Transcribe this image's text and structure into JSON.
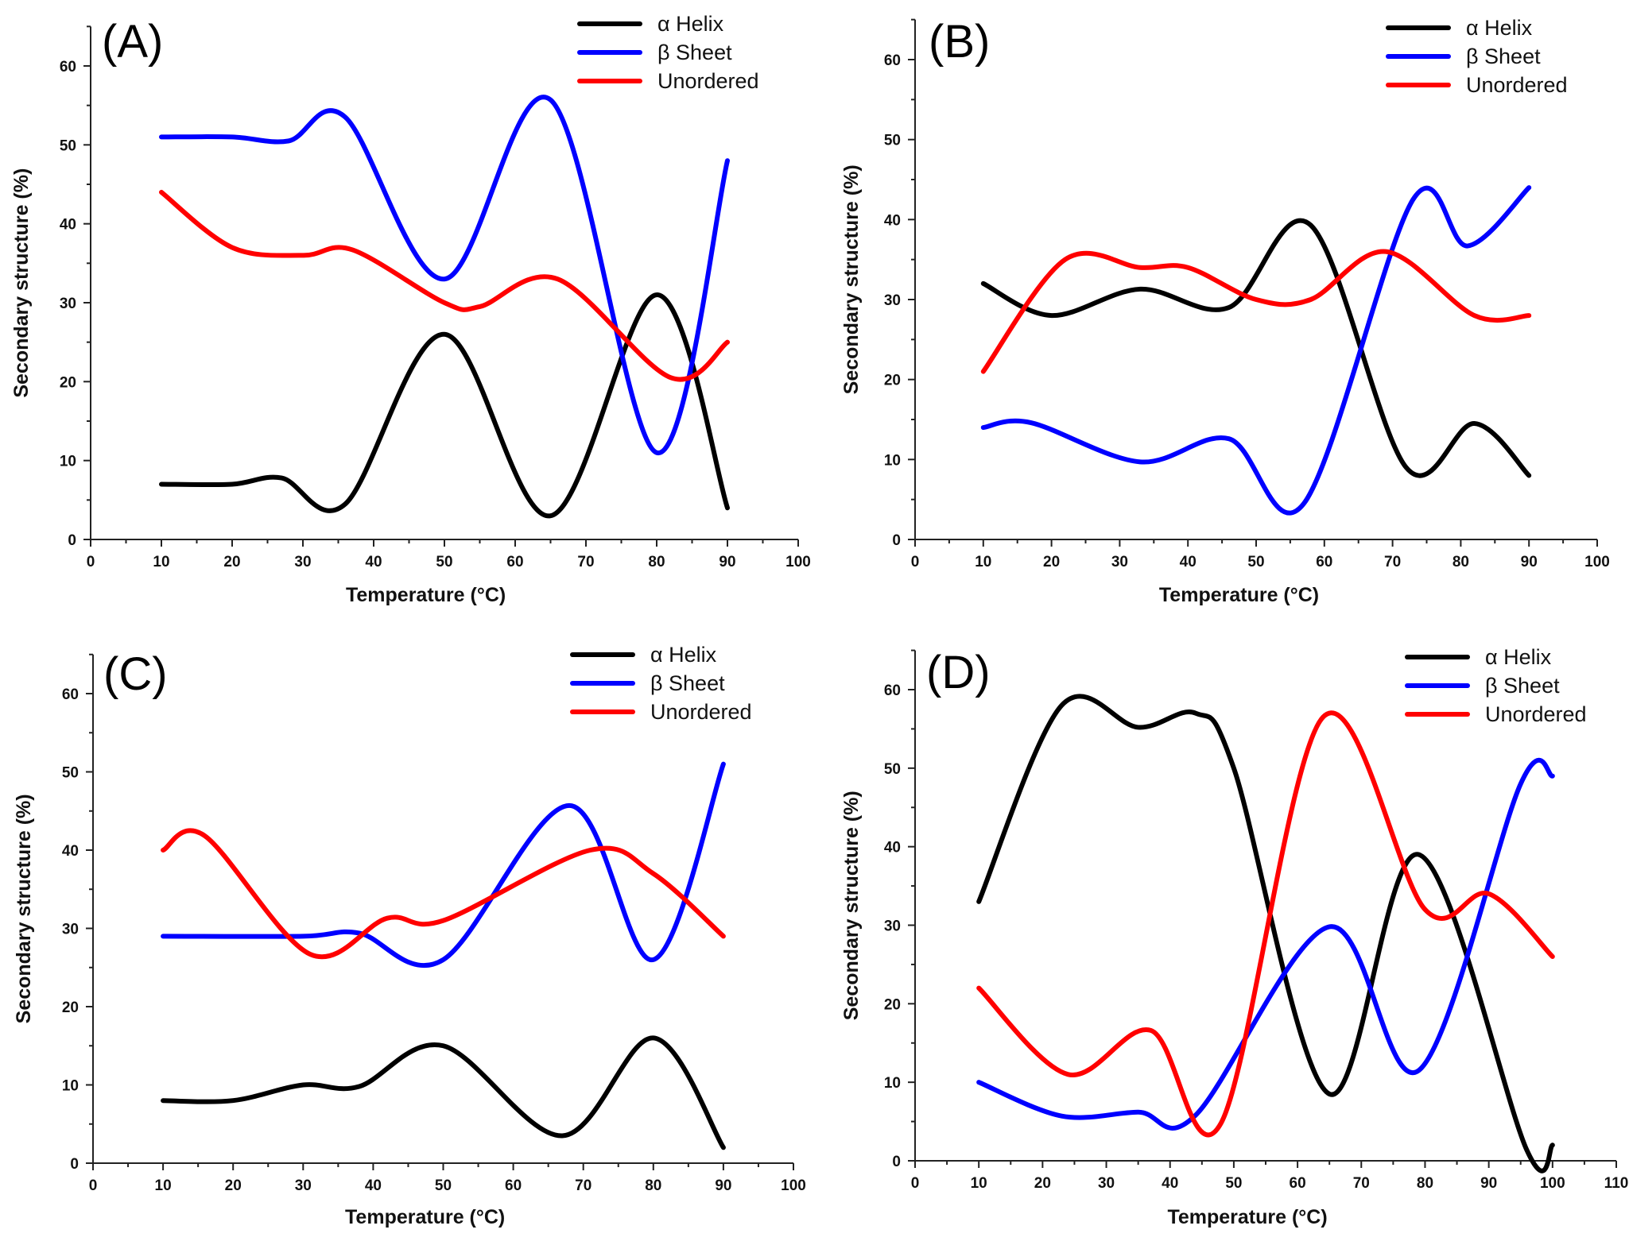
{
  "chart_data": [
    {
      "type": "line",
      "panel_label": "(A)",
      "xlabel": "Temperature (°C)",
      "ylabel": "Secondary structure (%)",
      "xlim": [
        0,
        100
      ],
      "ylim": [
        0,
        65
      ],
      "xticks": [
        0,
        10,
        20,
        30,
        40,
        50,
        60,
        70,
        80,
        90,
        100
      ],
      "yticks": [
        0,
        10,
        20,
        30,
        40,
        50,
        60
      ],
      "legend_position": "top-right",
      "series": [
        {
          "name": "α Helix",
          "color": "#000000",
          "points": [
            [
              10,
              7
            ],
            [
              20,
              7
            ],
            [
              27,
              7.8
            ],
            [
              36,
              4.5
            ],
            [
              50,
              26
            ],
            [
              65,
              3
            ],
            [
              80,
              31
            ],
            [
              90,
              4
            ]
          ]
        },
        {
          "name": "β Sheet",
          "color": "#0000ff",
          "points": [
            [
              10,
              51
            ],
            [
              20,
              51
            ],
            [
              28,
              50.5
            ],
            [
              36,
              53.5
            ],
            [
              50,
              33
            ],
            [
              65,
              55.7
            ],
            [
              80,
              11
            ],
            [
              90,
              48
            ]
          ]
        },
        {
          "name": "Unordered",
          "color": "#ff0000",
          "points": [
            [
              10,
              44
            ],
            [
              20,
              37
            ],
            [
              30,
              36
            ],
            [
              37,
              36.7
            ],
            [
              50,
              30
            ],
            [
              55,
              29.5
            ],
            [
              66,
              33
            ],
            [
              82,
              20.5
            ],
            [
              90,
              25
            ]
          ]
        }
      ]
    },
    {
      "type": "line",
      "panel_label": "(B)",
      "xlabel": "Temperature (°C)",
      "ylabel": "Secondary structure (%)",
      "xlim": [
        0,
        100
      ],
      "ylim": [
        0,
        65
      ],
      "xticks": [
        0,
        10,
        20,
        30,
        40,
        50,
        60,
        70,
        80,
        90,
        100
      ],
      "yticks": [
        0,
        10,
        20,
        30,
        40,
        50,
        60
      ],
      "legend_position": "top-right",
      "series": [
        {
          "name": "α Helix",
          "color": "#000000",
          "points": [
            [
              10,
              32
            ],
            [
              20,
              28
            ],
            [
              33,
              31.3
            ],
            [
              46,
              29
            ],
            [
              58,
              39.3
            ],
            [
              72,
              9
            ],
            [
              82,
              14.5
            ],
            [
              90,
              8
            ]
          ]
        },
        {
          "name": "β Sheet",
          "color": "#0000ff",
          "points": [
            [
              10,
              14
            ],
            [
              17,
              14.6
            ],
            [
              33,
              9.7
            ],
            [
              46,
              12.6
            ],
            [
              57,
              4.5
            ],
            [
              73,
              42.5
            ],
            [
              81,
              36.7
            ],
            [
              90,
              44
            ]
          ]
        },
        {
          "name": "Unordered",
          "color": "#ff0000",
          "points": [
            [
              10,
              21
            ],
            [
              22,
              35
            ],
            [
              33,
              34
            ],
            [
              40,
              34
            ],
            [
              50,
              30
            ],
            [
              58,
              30
            ],
            [
              69,
              36
            ],
            [
              82,
              28
            ],
            [
              90,
              28
            ]
          ]
        }
      ]
    },
    {
      "type": "line",
      "panel_label": "(C)",
      "xlabel": "Temperature (°C)",
      "ylabel": "Secondary structure (%)",
      "xlim": [
        0,
        100
      ],
      "ylim": [
        0,
        65
      ],
      "xticks": [
        0,
        10,
        20,
        30,
        40,
        50,
        60,
        70,
        80,
        90,
        100
      ],
      "yticks": [
        0,
        10,
        20,
        30,
        40,
        50,
        60
      ],
      "legend_position": "top-right",
      "series": [
        {
          "name": "α Helix",
          "color": "#000000",
          "points": [
            [
              10,
              8
            ],
            [
              20,
              8
            ],
            [
              30,
              10
            ],
            [
              38,
              9.8
            ],
            [
              50,
              15
            ],
            [
              67,
              3.5
            ],
            [
              80,
              16
            ],
            [
              90,
              2
            ]
          ]
        },
        {
          "name": "β Sheet",
          "color": "#0000ff",
          "points": [
            [
              10,
              29
            ],
            [
              30,
              29
            ],
            [
              38,
              29.4
            ],
            [
              50,
              26
            ],
            [
              68,
              45.7
            ],
            [
              80,
              26
            ],
            [
              90,
              51
            ]
          ]
        },
        {
          "name": "Unordered",
          "color": "#ff0000",
          "points": [
            [
              10,
              40
            ],
            [
              16,
              41.8
            ],
            [
              31,
              26.7
            ],
            [
              42,
              31.3
            ],
            [
              50,
              31
            ],
            [
              71,
              40
            ],
            [
              80,
              37
            ],
            [
              90,
              29
            ]
          ]
        }
      ]
    },
    {
      "type": "line",
      "panel_label": "(D)",
      "xlabel": "Temperature (°C)",
      "ylabel": "Secondary structure (%)",
      "xlim": [
        0,
        110
      ],
      "ylim": [
        0,
        65
      ],
      "xticks": [
        0,
        10,
        20,
        30,
        40,
        50,
        60,
        70,
        80,
        90,
        100,
        110
      ],
      "yticks": [
        0,
        10,
        20,
        30,
        40,
        50,
        60
      ],
      "legend_position": "top-right",
      "series": [
        {
          "name": "α Helix",
          "color": "#000000",
          "points": [
            [
              10,
              33
            ],
            [
              23,
              58
            ],
            [
              35,
              55.2
            ],
            [
              44,
              57
            ],
            [
              50,
              50
            ],
            [
              65,
              8.5
            ],
            [
              79,
              39
            ],
            [
              96,
              1.3
            ],
            [
              100,
              2
            ]
          ]
        },
        {
          "name": "β Sheet",
          "color": "#0000ff",
          "points": [
            [
              10,
              10
            ],
            [
              23,
              5.7
            ],
            [
              35,
              6.2
            ],
            [
              44,
              5.8
            ],
            [
              65,
              29.8
            ],
            [
              79,
              11.5
            ],
            [
              95,
              48
            ],
            [
              100,
              49
            ]
          ]
        },
        {
          "name": "Unordered",
          "color": "#ff0000",
          "points": [
            [
              10,
              22
            ],
            [
              24,
              11
            ],
            [
              37,
              16.6
            ],
            [
              48,
              4.8
            ],
            [
              64,
              56.5
            ],
            [
              80,
              32
            ],
            [
              90,
              34
            ],
            [
              100,
              26
            ]
          ]
        }
      ]
    }
  ]
}
